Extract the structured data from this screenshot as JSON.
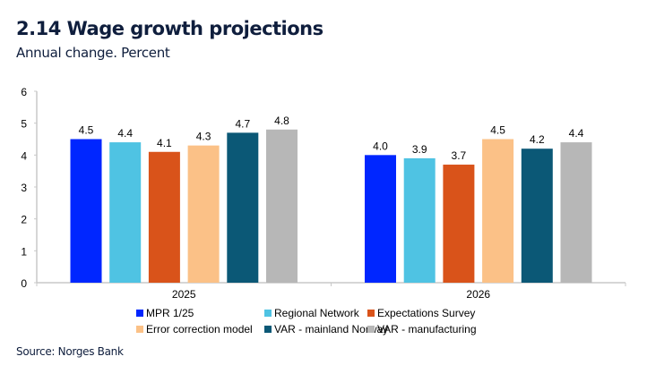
{
  "header": {
    "title": "2.14 Wage growth projections",
    "subtitle": "Annual change. Percent"
  },
  "footer": {
    "source": "Source: Norges Bank"
  },
  "chart_data": {
    "type": "bar",
    "title": "2.14 Wage growth projections",
    "subtitle": "Annual change. Percent",
    "xlabel": "",
    "ylabel": "",
    "categories": [
      "2025",
      "2026"
    ],
    "ylim": [
      0,
      6
    ],
    "yticks": [
      "0",
      "1",
      "2",
      "3",
      "4",
      "5",
      "6"
    ],
    "grid": false,
    "legend_position": "bottom",
    "series": [
      {
        "name": "MPR 1/25",
        "color": "#0026ff",
        "values": [
          4.5,
          4.0
        ],
        "labels": [
          "4.5",
          "4.0"
        ]
      },
      {
        "name": "Regional Network",
        "color": "#4fc3e3",
        "values": [
          4.4,
          3.9
        ],
        "labels": [
          "4.4",
          "3.9"
        ]
      },
      {
        "name": "Expectations Survey",
        "color": "#d9531a",
        "values": [
          4.1,
          3.7
        ],
        "labels": [
          "4.1",
          "3.7"
        ]
      },
      {
        "name": "Error correction model",
        "color": "#fbc187",
        "values": [
          4.3,
          4.5
        ],
        "labels": [
          "4.3",
          "4.5"
        ]
      },
      {
        "name": "VAR - mainland Norway",
        "color": "#0b5876",
        "values": [
          4.7,
          4.2
        ],
        "labels": [
          "4.7",
          "4.2"
        ]
      },
      {
        "name": "VAR - manufacturing",
        "color": "#b7b7b7",
        "values": [
          4.8,
          4.4
        ],
        "labels": [
          "4.8",
          "4.4"
        ]
      }
    ]
  }
}
